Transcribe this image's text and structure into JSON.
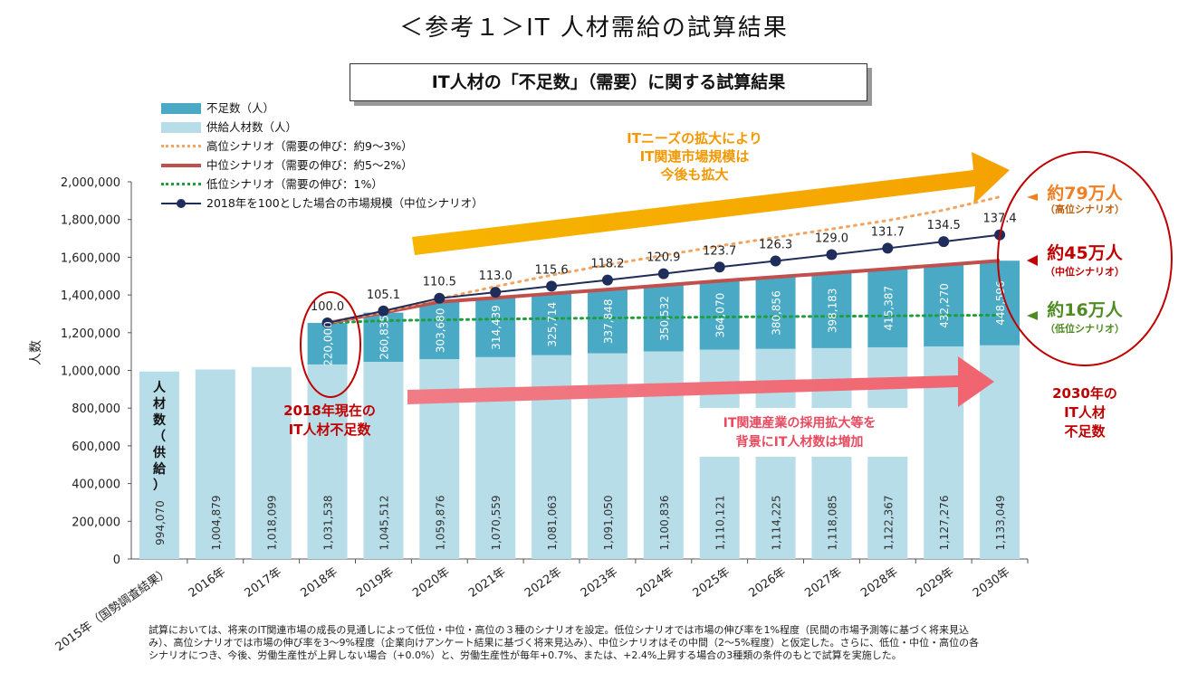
{
  "header": {
    "title": "＜参考１＞IT 人材需給の試算結果",
    "subtitle": "IT人材の「不足数」（需要）に関する試算結果"
  },
  "legend": [
    {
      "key": "shortage",
      "label": "不足数（人）",
      "color": "#4aaac6",
      "kind": "box"
    },
    {
      "key": "supply",
      "label": "供給人材数（人）",
      "color": "#b7dde8",
      "kind": "box"
    },
    {
      "key": "high",
      "label": "高位シナリオ（需要の伸び：約9～3%）",
      "color": "#f4a460",
      "kind": "dotted"
    },
    {
      "key": "mid",
      "label": "中位シナリオ（需要の伸び：約5～2%）",
      "color": "#c0504d",
      "kind": "solid"
    },
    {
      "key": "low",
      "label": "低位シナリオ（需要の伸び：1%）",
      "color": "#1f9e3c",
      "kind": "dotted"
    },
    {
      "key": "market",
      "label": "2018年を100とした場合の市場規模（中位シナリオ）",
      "color": "#1f2d5a",
      "kind": "marker"
    }
  ],
  "annotations": {
    "needs_arrow": [
      "ITニーズの拡大により",
      "IT関連市場規模は",
      "今後も拡大"
    ],
    "current_shortage": [
      "2018年現在の",
      "IT人材不足数"
    ],
    "hiring_arrow": [
      "IT関連産業の採用拡大等を",
      "背景にIT人材数は増加"
    ],
    "shortage_2030": [
      "2030年の",
      "IT人材",
      "不足数"
    ],
    "high_result": {
      "main": "約79万人",
      "sub": "（高位シナリオ）"
    },
    "mid_result": {
      "main": "約45万人",
      "sub": "（中位シナリオ）"
    },
    "low_result": {
      "main": "約16万人",
      "sub": "（低位シナリオ）"
    },
    "vertical_supply": "人材数（供給）"
  },
  "chart_data": {
    "type": "bar",
    "categories": [
      "2015年（国勢調査結果）",
      "2016年",
      "2017年",
      "2018年",
      "2019年",
      "2020年",
      "2021年",
      "2022年",
      "2023年",
      "2024年",
      "2025年",
      "2026年",
      "2027年",
      "2028年",
      "2029年",
      "2030年"
    ],
    "ylabel": "人数",
    "ylim": [
      0,
      2000000
    ],
    "yticks": [
      "0",
      "200,000",
      "400,000",
      "600,000",
      "800,000",
      "1,000,000",
      "1,200,000",
      "1,400,000",
      "1,600,000",
      "1,800,000",
      "2,000,000"
    ],
    "series": [
      {
        "name": "供給人材数（人）",
        "kind": "stacked-bar",
        "values": [
          994070,
          1004879,
          1018099,
          1031538,
          1045512,
          1059876,
          1070559,
          1081063,
          1091050,
          1100836,
          1110121,
          1114225,
          1118085,
          1122367,
          1127276,
          1133049
        ],
        "labels": [
          "994,070",
          "1,004,879",
          "1,018,099",
          "1,031,538",
          "1,045,512",
          "1,059,876",
          "1,070,559",
          "1,081,063",
          "1,091,050",
          "1,100,836",
          "1,110,121",
          "1,114,225",
          "1,118,085",
          "1,122,367",
          "1,127,276",
          "1,133,049"
        ]
      },
      {
        "name": "不足数（人）",
        "kind": "stacked-bar",
        "values": [
          null,
          null,
          null,
          220000,
          260835,
          303680,
          314439,
          325714,
          337848,
          350532,
          364070,
          380856,
          398183,
          415387,
          432270,
          448596
        ],
        "labels": [
          "",
          "",
          "",
          "220,000",
          "260,835",
          "303,680",
          "314,439",
          "325,714",
          "337,848",
          "350,532",
          "364,070",
          "380,856",
          "398,183",
          "415,387",
          "432,270",
          "448,596"
        ]
      },
      {
        "name": "2018年を100とした場合の市場規模（中位シナリオ）",
        "kind": "line-marker",
        "values": [
          null,
          null,
          null,
          100.0,
          105.1,
          110.5,
          113.0,
          115.6,
          118.2,
          120.9,
          123.7,
          126.3,
          129.0,
          131.7,
          134.5,
          137.4
        ],
        "labels": [
          "",
          "",
          "",
          "100.0",
          "105.1",
          "110.5",
          "113.0",
          "115.6",
          "118.2",
          "120.9",
          "123.7",
          "126.3",
          "129.0",
          "131.7",
          "134.5",
          "137.4"
        ]
      },
      {
        "name": "高位シナリオ（需要の伸び：約9～3%）",
        "kind": "line",
        "values": [
          null,
          null,
          null,
          1251538,
          1310000,
          1380000,
          1445000,
          1505000,
          1560000,
          1610000,
          1660000,
          1705000,
          1750000,
          1795000,
          1850000,
          1920000
        ]
      },
      {
        "name": "中位シナリオ（需要の伸び：約5～2%）",
        "kind": "line",
        "values": [
          null,
          null,
          null,
          1251538,
          1306347,
          1363556,
          1384998,
          1406777,
          1428898,
          1451368,
          1474191,
          1495081,
          1516268,
          1537754,
          1559546,
          1581645
        ]
      },
      {
        "name": "低位シナリオ（需要の伸び：1%）",
        "kind": "line",
        "values": [
          null,
          null,
          null,
          1251538,
          1264053,
          1268000,
          1272000,
          1275000,
          1278000,
          1280000,
          1283000,
          1285000,
          1287000,
          1289000,
          1291000,
          1293000
        ]
      }
    ],
    "grid": false,
    "legend_position": "top-left"
  },
  "footnote": [
    "試算においては、将来のIT関連市場の成長の見通しによって低位・中位・高位の３種のシナリオを設定。低位シナリオでは市場の伸び率を1%程度（民間の市場予測等に基づく将来見込",
    "み）、高位シナリオでは市場の伸び率を3～9%程度（企業向けアンケート結果に基づく将来見込み）、中位シナリオはその中間（2～5%程度）と仮定した。さらに、低位・中位・高位の各",
    "シナリオにつき、今後、労働生産性が上昇しない場合（+0.0%）と、労働生産性が毎年+0.7%、または、+2.4%上昇する場合の3種類の条件のもとで試算を実施した。"
  ]
}
